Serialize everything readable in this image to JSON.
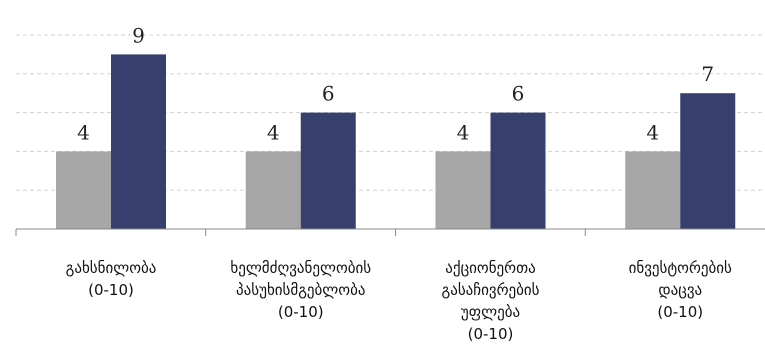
{
  "chart_data": {
    "type": "bar",
    "categories": [
      [
        "გახსნილობა",
        "(0-10)"
      ],
      [
        "ხელმძღვანელობის",
        "პასუხისმგებლობა",
        "(0-10)"
      ],
      [
        "აქციონერთა",
        "გასაჩივრების",
        "უფლება",
        "(0-10)"
      ],
      [
        "ინვესტორების",
        "დაცვა",
        "(0-10)"
      ]
    ],
    "series": [
      {
        "values": [
          4,
          4,
          4,
          4
        ],
        "color": "#a6a6a6"
      },
      {
        "values": [
          9,
          6,
          6,
          7
        ],
        "color": "#363f6e"
      }
    ],
    "ylim": [
      0,
      10
    ],
    "grid": true,
    "legend": "none"
  }
}
